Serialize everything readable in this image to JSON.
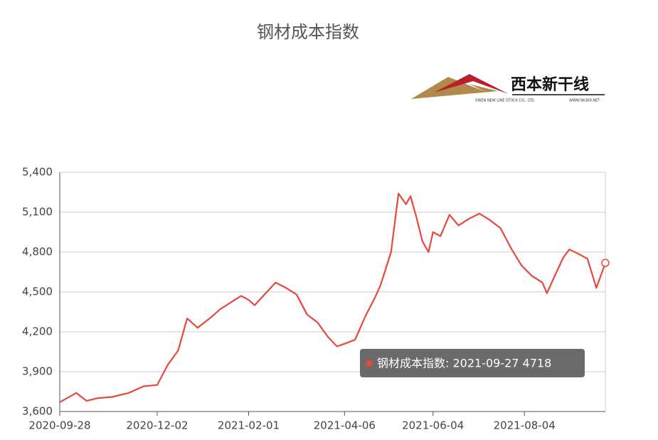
{
  "chart_data": {
    "type": "line",
    "title": "钢材成本指数",
    "logo": {
      "name": "西本新干线",
      "company": "XIBEN NEW LINE STOCK CO., LTD.",
      "site": "WWW.96369.NET"
    },
    "x": [
      "2020-09-28",
      "2020-10-09",
      "2020-10-16",
      "2020-10-23",
      "2020-11-02",
      "2020-11-13",
      "2020-11-23",
      "2020-12-02",
      "2020-12-09",
      "2020-12-16",
      "2020-12-22",
      "2020-12-29",
      "2021-01-06",
      "2021-01-13",
      "2021-01-20",
      "2021-01-27",
      "2021-02-01",
      "2021-02-05",
      "2021-02-19",
      "2021-02-26",
      "2021-03-05",
      "2021-03-12",
      "2021-03-19",
      "2021-03-26",
      "2021-04-01",
      "2021-04-06",
      "2021-04-13",
      "2021-04-20",
      "2021-04-26",
      "2021-04-30",
      "2021-05-07",
      "2021-05-12",
      "2021-05-17",
      "2021-05-20",
      "2021-05-24",
      "2021-05-28",
      "2021-06-01",
      "2021-06-04",
      "2021-06-09",
      "2021-06-15",
      "2021-06-21",
      "2021-06-28",
      "2021-07-05",
      "2021-07-12",
      "2021-07-19",
      "2021-07-26",
      "2021-08-02",
      "2021-08-09",
      "2021-08-16",
      "2021-08-19",
      "2021-08-25",
      "2021-08-30",
      "2021-09-03",
      "2021-09-10",
      "2021-09-15",
      "2021-09-21",
      "2021-09-27"
    ],
    "series": [
      {
        "name": "钢材成本指数",
        "color": "#e8473c",
        "values": [
          3670,
          3740,
          3680,
          3700,
          3710,
          3740,
          3790,
          3800,
          3950,
          4060,
          4300,
          4230,
          4300,
          4370,
          4420,
          4470,
          4440,
          4400,
          4570,
          4530,
          4480,
          4330,
          4270,
          4160,
          4090,
          4110,
          4140,
          4320,
          4450,
          4550,
          4800,
          5240,
          5160,
          5220,
          5060,
          4880,
          4800,
          4950,
          4920,
          5080,
          5000,
          5050,
          5090,
          5040,
          4980,
          4830,
          4700,
          4620,
          4570,
          4490,
          4640,
          4760,
          4820,
          4780,
          4750,
          4530,
          4718
        ]
      }
    ],
    "xlim": [
      "2020-09-28",
      "2021-09-27"
    ],
    "xticks": [
      "2020-09-28",
      "2020-12-02",
      "2021-02-01",
      "2021-04-06",
      "2021-06-04",
      "2021-08-04"
    ],
    "ylim": [
      3600,
      5400
    ],
    "yticks": [
      {
        "value": 3600,
        "label": "3,600"
      },
      {
        "value": 3900,
        "label": "3,900"
      },
      {
        "value": 4200,
        "label": "4,200"
      },
      {
        "value": 4500,
        "label": "4,500"
      },
      {
        "value": 4800,
        "label": "4,800"
      },
      {
        "value": 5100,
        "label": "5,100"
      },
      {
        "value": 5400,
        "label": "5,400"
      }
    ],
    "grid": true,
    "tooltip": "钢材成本指数: 2021-09-27 4718"
  }
}
